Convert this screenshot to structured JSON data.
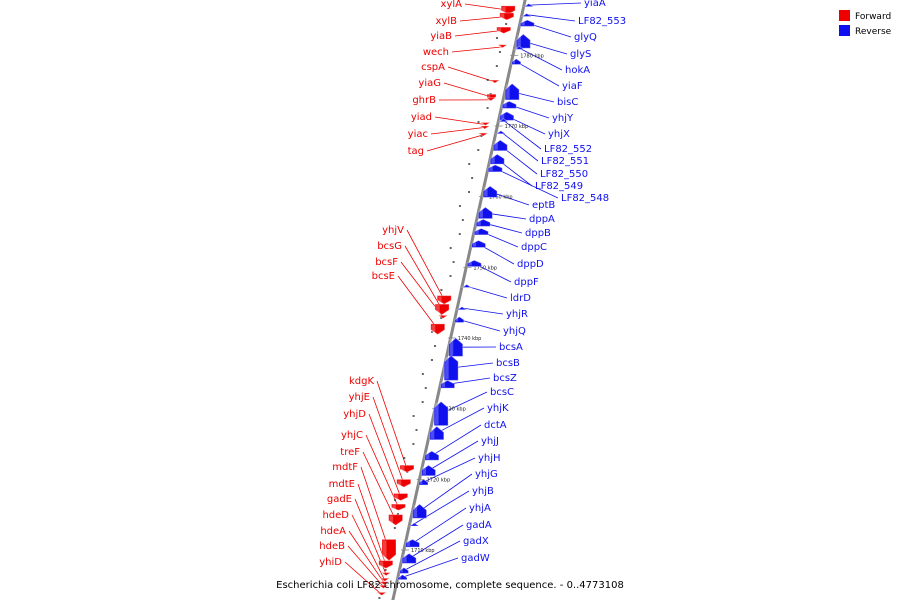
{
  "caption": "Escherichia coli LF82 chromosome, complete sequence. - 0..4773108",
  "legend": [
    {
      "label": "Forward",
      "color": "#ee0000"
    },
    {
      "label": "Reverse",
      "color": "#1010ee"
    }
  ],
  "colors": {
    "axis": "#888888",
    "forward": "#ee0000",
    "reverse": "#1010ee"
  },
  "ticks": [
    {
      "label": "1780 kbp",
      "pos": 1780
    },
    {
      "label": "1770 kbp",
      "pos": 1770
    },
    {
      "label": "1760 kbp",
      "pos": 1760
    },
    {
      "label": "1750 kbp",
      "pos": 1750
    },
    {
      "label": "1740 kbp",
      "pos": 1740
    },
    {
      "label": "1730 kbp",
      "pos": 1730
    },
    {
      "label": "1720 kbp",
      "pos": 1720
    },
    {
      "label": "1710 kbp",
      "pos": 1710
    }
  ],
  "genes": {
    "forward": [
      {
        "name": "xylA",
        "pos": 1787.0,
        "len": 1.2
      },
      {
        "name": "xylB",
        "pos": 1786.0,
        "len": 1.0
      },
      {
        "name": "yiaB",
        "pos": 1784.0,
        "len": 0.9
      },
      {
        "name": "wech",
        "pos": 1781.5,
        "len": 0.6
      },
      {
        "name": "cspA",
        "pos": 1776.5,
        "len": 0.5
      },
      {
        "name": "yiaG",
        "pos": 1774.5,
        "len": 0.8
      },
      {
        "name": "ghrB",
        "pos": 1774.0,
        "len": 0.6
      },
      {
        "name": "yiad",
        "pos": 1770.5,
        "len": 0.6
      },
      {
        "name": "yiac",
        "pos": 1770.0,
        "len": 0.4
      },
      {
        "name": "tag",
        "pos": 1769.0,
        "len": 0.5
      },
      {
        "name": "yhjV",
        "pos": 1746.0,
        "len": 1.2
      },
      {
        "name": "bcsG",
        "pos": 1744.8,
        "len": 1.5
      },
      {
        "name": "bcsF",
        "pos": 1743.2,
        "len": 0.4
      },
      {
        "name": "bcsE",
        "pos": 1742.0,
        "len": 1.5
      },
      {
        "name": "kdgK",
        "pos": 1722.0,
        "len": 1.0
      },
      {
        "name": "yhjE",
        "pos": 1720.0,
        "len": 1.1
      },
      {
        "name": "yhjD",
        "pos": 1718.0,
        "len": 1.0
      },
      {
        "name": "yhjC",
        "pos": 1716.5,
        "len": 0.9
      },
      {
        "name": "treF",
        "pos": 1715.0,
        "len": 1.5
      },
      {
        "name": "mdtF",
        "pos": 1711.5,
        "len": 3.0
      },
      {
        "name": "mdtE",
        "pos": 1708.5,
        "len": 1.1
      },
      {
        "name": "gadE",
        "pos": 1706.8,
        "len": 0.5
      },
      {
        "name": "hdeD",
        "pos": 1706.0,
        "len": 0.6
      },
      {
        "name": "hdeA",
        "pos": 1705.5,
        "len": 0.3
      },
      {
        "name": "hdeB",
        "pos": 1705.0,
        "len": 0.3
      },
      {
        "name": "yhiD",
        "pos": 1704.0,
        "len": 0.6
      }
    ],
    "reverse": [
      {
        "name": "yiaA",
        "pos": 1787.3,
        "len": 0.4
      },
      {
        "name": "LF82_553",
        "pos": 1786.0,
        "len": 0.5
      },
      {
        "name": "glyQ",
        "pos": 1785.0,
        "len": 0.9
      },
      {
        "name": "glyS",
        "pos": 1783.0,
        "len": 2.0
      },
      {
        "name": "hokA",
        "pos": 1781.2,
        "len": 0.2
      },
      {
        "name": "yiaF",
        "pos": 1779.5,
        "len": 0.8
      },
      {
        "name": "bisC",
        "pos": 1776.0,
        "len": 2.3
      },
      {
        "name": "yhjY",
        "pos": 1773.5,
        "len": 1.0
      },
      {
        "name": "yhjX",
        "pos": 1772.0,
        "len": 1.2
      },
      {
        "name": "LF82_552",
        "pos": 1771.0,
        "len": 0.4
      },
      {
        "name": "LF82_551",
        "pos": 1769.5,
        "len": 0.6
      },
      {
        "name": "LF82_550",
        "pos": 1768.0,
        "len": 1.5
      },
      {
        "name": "LF82_549",
        "pos": 1766.0,
        "len": 1.4
      },
      {
        "name": "LF82_548",
        "pos": 1764.5,
        "len": 1.0
      },
      {
        "name": "eptB",
        "pos": 1761.5,
        "len": 1.6
      },
      {
        "name": "dppA",
        "pos": 1758.5,
        "len": 1.6
      },
      {
        "name": "dppB",
        "pos": 1756.8,
        "len": 1.0
      },
      {
        "name": "dppC",
        "pos": 1755.5,
        "len": 0.9
      },
      {
        "name": "dppD",
        "pos": 1753.8,
        "len": 1.0
      },
      {
        "name": "dppF",
        "pos": 1751.0,
        "len": 0.9
      },
      {
        "name": "ldrD",
        "pos": 1747.5,
        "len": 0.3
      },
      {
        "name": "yhjR",
        "pos": 1744.5,
        "len": 0.5
      },
      {
        "name": "yhjQ",
        "pos": 1743.0,
        "len": 0.8
      },
      {
        "name": "bcsA",
        "pos": 1740.0,
        "len": 2.6
      },
      {
        "name": "bcsB",
        "pos": 1737.5,
        "len": 3.5
      },
      {
        "name": "bcsZ",
        "pos": 1734.0,
        "len": 1.1
      },
      {
        "name": "bcsC",
        "pos": 1731.0,
        "len": 3.4
      },
      {
        "name": "yhjK",
        "pos": 1727.5,
        "len": 1.9
      },
      {
        "name": "dctA",
        "pos": 1724.0,
        "len": 1.3
      },
      {
        "name": "yhjJ",
        "pos": 1722.0,
        "len": 1.5
      },
      {
        "name": "yhjH",
        "pos": 1720.0,
        "len": 0.8
      },
      {
        "name": "yhjG",
        "pos": 1716.5,
        "len": 2.0
      },
      {
        "name": "yhjB",
        "pos": 1714.0,
        "len": 0.6
      },
      {
        "name": "yhjA",
        "pos": 1711.5,
        "len": 1.1
      },
      {
        "name": "gadA",
        "pos": 1709.5,
        "len": 1.4
      },
      {
        "name": "gadX",
        "pos": 1707.5,
        "len": 0.8
      },
      {
        "name": "gadW",
        "pos": 1706.5,
        "len": 0.7
      }
    ]
  }
}
